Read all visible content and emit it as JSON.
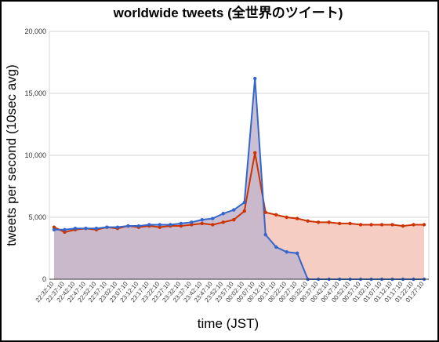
{
  "chart_data": {
    "type": "area",
    "title": "worldwide tweets (全世界のツイート)",
    "xlabel": "time (JST)",
    "ylabel": "tweets per second (10sec avg)",
    "ylim": [
      0,
      20000
    ],
    "yticks": [
      "0",
      "5,000",
      "10,000",
      "15,000",
      "20,000"
    ],
    "ytick_values": [
      0,
      5000,
      10000,
      15000,
      20000
    ],
    "xticks": [
      "22:32:10",
      "22:37:10",
      "22:42:10",
      "22:47:10",
      "22:52:10",
      "22:57:10",
      "23:02:10",
      "23:07:10",
      "23:12:10",
      "23:17:10",
      "23:22:10",
      "23:27:10",
      "23:32:10",
      "23:37:10",
      "23:42:10",
      "23:47:10",
      "23:52:10",
      "23:57:10",
      "00:02:10",
      "00:07:10",
      "00:12:10",
      "00:17:10",
      "00:22:10",
      "00:27:10",
      "00:32:10",
      "00:37:10",
      "00:42:10",
      "00:47:10",
      "00:52:10",
      "00:57:10",
      "01:02:10",
      "01:07:10",
      "01:12:10",
      "01:17:10",
      "01:22:10",
      "01:27:10"
    ],
    "grid": true,
    "series": [
      {
        "color": "#cc3300",
        "fill": "#f4c4b8",
        "values": [
          4200,
          3800,
          4000,
          4100,
          4000,
          4200,
          4100,
          4300,
          4200,
          4300,
          4200,
          4300,
          4300,
          4400,
          4500,
          4400,
          4600,
          4800,
          5500,
          10200,
          5400,
          5200,
          5000,
          4900,
          4700,
          4600,
          4600,
          4500,
          4500,
          4400,
          4400,
          4400,
          4400,
          4300,
          4400,
          4400
        ]
      },
      {
        "color": "#3366cc",
        "fill": "#c2b4cc",
        "values": [
          4000,
          4000,
          4100,
          4100,
          4100,
          4200,
          4200,
          4300,
          4300,
          4400,
          4400,
          4400,
          4500,
          4600,
          4800,
          4900,
          5300,
          5600,
          6200,
          16200,
          3600,
          2600,
          2200,
          2100,
          0,
          0,
          0,
          0,
          0,
          0,
          0,
          0,
          0,
          0,
          0,
          0
        ]
      }
    ]
  }
}
